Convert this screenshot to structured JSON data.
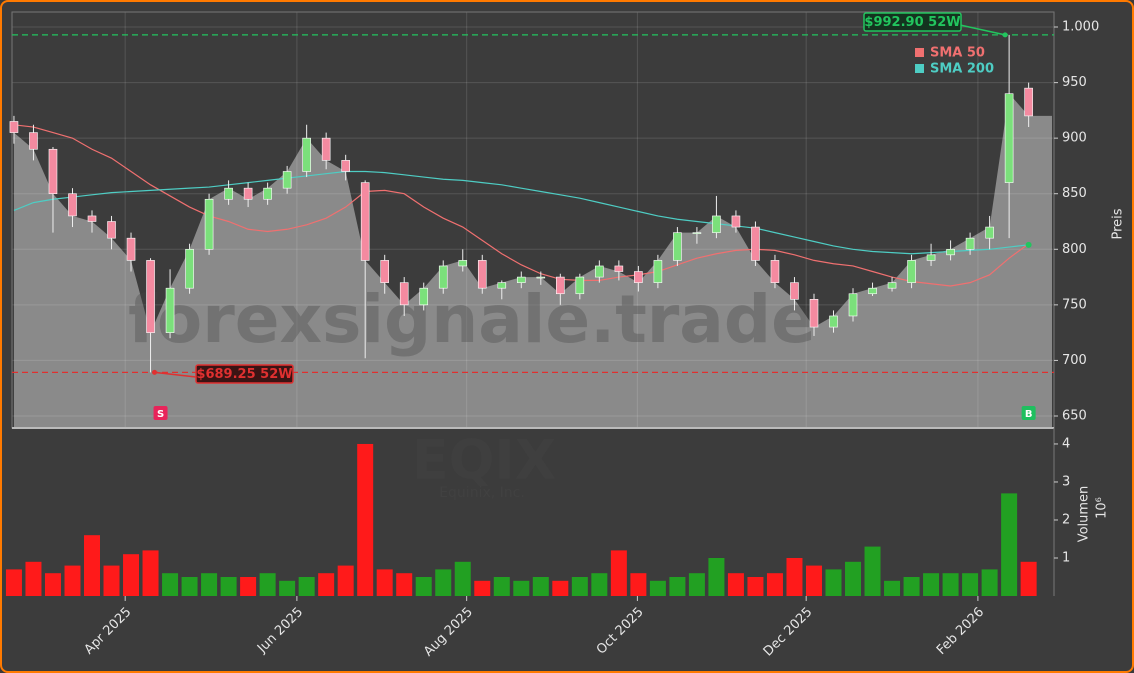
{
  "chart_data": {
    "type": "candlestick",
    "xticks": [
      {
        "value": 5.7,
        "label": "Apr 2025"
      },
      {
        "value": 14.5,
        "label": "Jun 2025"
      },
      {
        "value": 23.2,
        "label": "Aug 2025"
      },
      {
        "value": 31.95,
        "label": "Oct 2025"
      },
      {
        "value": 40.6,
        "label": "Dec 2025"
      },
      {
        "value": 49.4,
        "label": "Feb 2026"
      }
    ],
    "xlim": [
      -0.1,
      53.3
    ],
    "open": [
      915,
      905,
      890,
      850,
      830,
      825,
      810,
      790,
      725,
      765,
      800,
      845,
      855,
      845,
      855,
      870,
      900,
      880,
      860,
      790,
      770,
      750,
      765,
      785,
      790,
      765,
      770,
      775,
      775,
      760,
      775,
      785,
      780,
      770,
      790,
      815,
      815,
      830,
      820,
      790,
      770,
      755,
      730,
      740,
      760,
      765,
      770,
      790,
      795,
      800,
      810,
      860,
      945
    ],
    "high": [
      920,
      912,
      892,
      855,
      835,
      830,
      815,
      792,
      782,
      805,
      850,
      862,
      860,
      860,
      875,
      912,
      905,
      885,
      862,
      795,
      775,
      770,
      790,
      800,
      795,
      772,
      780,
      780,
      778,
      778,
      790,
      790,
      785,
      795,
      820,
      820,
      848,
      835,
      825,
      795,
      775,
      760,
      745,
      765,
      770,
      775,
      795,
      805,
      808,
      815,
      830,
      992.9,
      950
    ],
    "low": [
      895,
      880,
      815,
      820,
      815,
      800,
      780,
      689.25,
      720,
      760,
      795,
      840,
      838,
      840,
      850,
      865,
      872,
      862,
      702,
      760,
      740,
      745,
      760,
      780,
      760,
      755,
      765,
      768,
      750,
      755,
      770,
      772,
      762,
      765,
      785,
      805,
      810,
      815,
      785,
      765,
      745,
      722,
      725,
      735,
      758,
      762,
      765,
      785,
      790,
      795,
      800,
      810,
      910
    ],
    "close": [
      905,
      890,
      850,
      830,
      825,
      810,
      790,
      725,
      765,
      800,
      845,
      855,
      845,
      855,
      870,
      900,
      880,
      870,
      790,
      770,
      750,
      765,
      785,
      790,
      765,
      770,
      775,
      775,
      760,
      775,
      785,
      780,
      770,
      790,
      815,
      815,
      830,
      820,
      790,
      770,
      755,
      730,
      740,
      760,
      765,
      770,
      790,
      795,
      800,
      810,
      820,
      940,
      920
    ],
    "up_color": "#22a022",
    "down_color": "#ff1a1a",
    "series": [
      {
        "name": "SMA 50",
        "color": "#f07070",
        "values": [
          912,
          910,
          905,
          900,
          890,
          882,
          870,
          858,
          848,
          838,
          830,
          825,
          818,
          816,
          818,
          822,
          828,
          838,
          852,
          853,
          850,
          838,
          828,
          820,
          808,
          796,
          786,
          778,
          773,
          772,
          772,
          775,
          777,
          780,
          786,
          792,
          796,
          799,
          800,
          799,
          795,
          790,
          787,
          785,
          780,
          775,
          771,
          769,
          767,
          770,
          777,
          792,
          805
        ]
      },
      {
        "name": "SMA 200",
        "color": "#4ecdc4",
        "values": [
          835,
          842,
          845,
          847,
          849,
          851,
          852,
          853,
          854,
          855,
          856,
          858,
          860,
          862,
          864,
          866,
          868,
          870,
          870,
          869,
          867,
          865,
          863,
          862,
          860,
          858,
          855,
          852,
          849,
          846,
          842,
          838,
          834,
          830,
          827,
          825,
          823,
          821,
          819,
          815,
          811,
          807,
          803,
          800,
          798,
          797,
          796,
          797,
          798,
          799,
          800,
          802,
          804
        ]
      }
    ],
    "ylim": [
      639.2,
      1013.5
    ],
    "yticks": [
      650,
      700,
      750,
      800,
      850,
      900,
      950,
      {
        "value": 1000,
        "label": "1.000"
      }
    ],
    "ylabel": "Preis",
    "volume": [
      0.7,
      0.9,
      0.6,
      0.8,
      1.6,
      0.8,
      1.1,
      1.2,
      0.6,
      0.5,
      0.6,
      0.5,
      0.5,
      0.6,
      0.4,
      0.5,
      0.6,
      0.8,
      4.0,
      0.7,
      0.6,
      0.5,
      0.7,
      0.9,
      0.4,
      0.5,
      0.4,
      0.5,
      0.4,
      0.5,
      0.6,
      1.2,
      0.6,
      0.4,
      0.5,
      0.6,
      1.0,
      0.6,
      0.5,
      0.6,
      1.0,
      0.8,
      0.7,
      0.9,
      1.3,
      0.4,
      0.5,
      0.6,
      0.6,
      0.6,
      0.7,
      2.7,
      0.9
    ],
    "volume_ylim": [
      0,
      4.42
    ],
    "volume_yticks": [
      1,
      2,
      3,
      4
    ],
    "volume_label": "Volumen",
    "volume_scale": "10⁶",
    "annotations": [
      {
        "value": 992.9,
        "label": "$992.90 52W",
        "color": "#22c55e"
      },
      {
        "value": 689.25,
        "label": "$689.25 52W",
        "color": "#e03030"
      }
    ],
    "signals": [
      {
        "label": "S",
        "color": "#e8245a"
      },
      {
        "label": "B",
        "color": "#1fbf5f"
      }
    ],
    "watermark": "forexsignale.trade",
    "symbol": "EQIX",
    "company": "Equinix, Inc.",
    "grid": true
  }
}
